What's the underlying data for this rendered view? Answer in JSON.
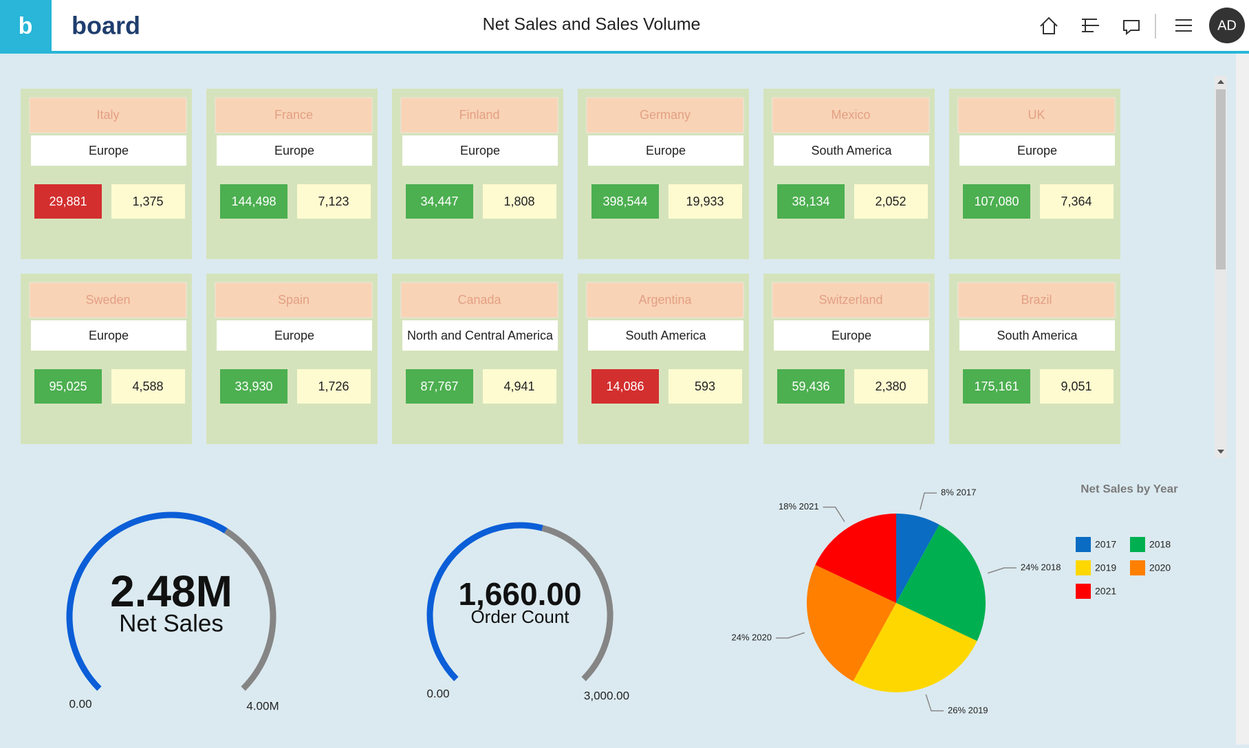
{
  "header": {
    "logo": "board",
    "title": "Net Sales and Sales Volume",
    "avatar": "AD"
  },
  "cards": [
    {
      "country": "Italy",
      "region": "Europe",
      "net_sales": "29,881",
      "net_sales_color": "#d32f2f",
      "volume": "1,375"
    },
    {
      "country": "France",
      "region": "Europe",
      "net_sales": "144,498",
      "net_sales_color": "#4caf50",
      "volume": "7,123"
    },
    {
      "country": "Finland",
      "region": "Europe",
      "net_sales": "34,447",
      "net_sales_color": "#4caf50",
      "volume": "1,808"
    },
    {
      "country": "Germany",
      "region": "Europe",
      "net_sales": "398,544",
      "net_sales_color": "#4caf50",
      "volume": "19,933"
    },
    {
      "country": "Mexico",
      "region": "South America",
      "net_sales": "38,134",
      "net_sales_color": "#4caf50",
      "volume": "2,052"
    },
    {
      "country": "UK",
      "region": "Europe",
      "net_sales": "107,080",
      "net_sales_color": "#4caf50",
      "volume": "7,364"
    },
    {
      "country": "Sweden",
      "region": "Europe",
      "net_sales": "95,025",
      "net_sales_color": "#4caf50",
      "volume": "4,588"
    },
    {
      "country": "Spain",
      "region": "Europe",
      "net_sales": "33,930",
      "net_sales_color": "#4caf50",
      "volume": "1,726"
    },
    {
      "country": "Canada",
      "region": "North and Central America",
      "net_sales": "87,767",
      "net_sales_color": "#4caf50",
      "volume": "4,941"
    },
    {
      "country": "Argentina",
      "region": "South America",
      "net_sales": "14,086",
      "net_sales_color": "#d32f2f",
      "volume": "593"
    },
    {
      "country": "Switzerland",
      "region": "Europe",
      "net_sales": "59,436",
      "net_sales_color": "#4caf50",
      "volume": "2,380"
    },
    {
      "country": "Brazil",
      "region": "South America",
      "net_sales": "175,161",
      "net_sales_color": "#4caf50",
      "volume": "9,051"
    }
  ],
  "gauges": [
    {
      "name": "Net Sales",
      "value": 2480000,
      "value_label": "2.48M",
      "min": {
        "value": 0,
        "label": "0.00"
      },
      "max": {
        "value": 4000000,
        "label": "4.00M"
      }
    },
    {
      "name": "Order Count",
      "value": 1660,
      "value_label": "1,660.00",
      "min": {
        "value": 0,
        "label": "0.00"
      },
      "max": {
        "value": 3000,
        "label": "3,000.00"
      }
    }
  ],
  "chart_data": {
    "type": "pie",
    "title": "Net Sales by Year",
    "categories": [
      "2017",
      "2018",
      "2019",
      "2020",
      "2021"
    ],
    "values": [
      8,
      24,
      26,
      24,
      18
    ],
    "value_labels": [
      "8% 2017",
      "24% 2018",
      "26% 2019",
      "24% 2020",
      "18% 2021"
    ],
    "colors": [
      "#0a6cc2",
      "#00b050",
      "#ffd700",
      "#ff7f00",
      "#ff0000"
    ]
  }
}
